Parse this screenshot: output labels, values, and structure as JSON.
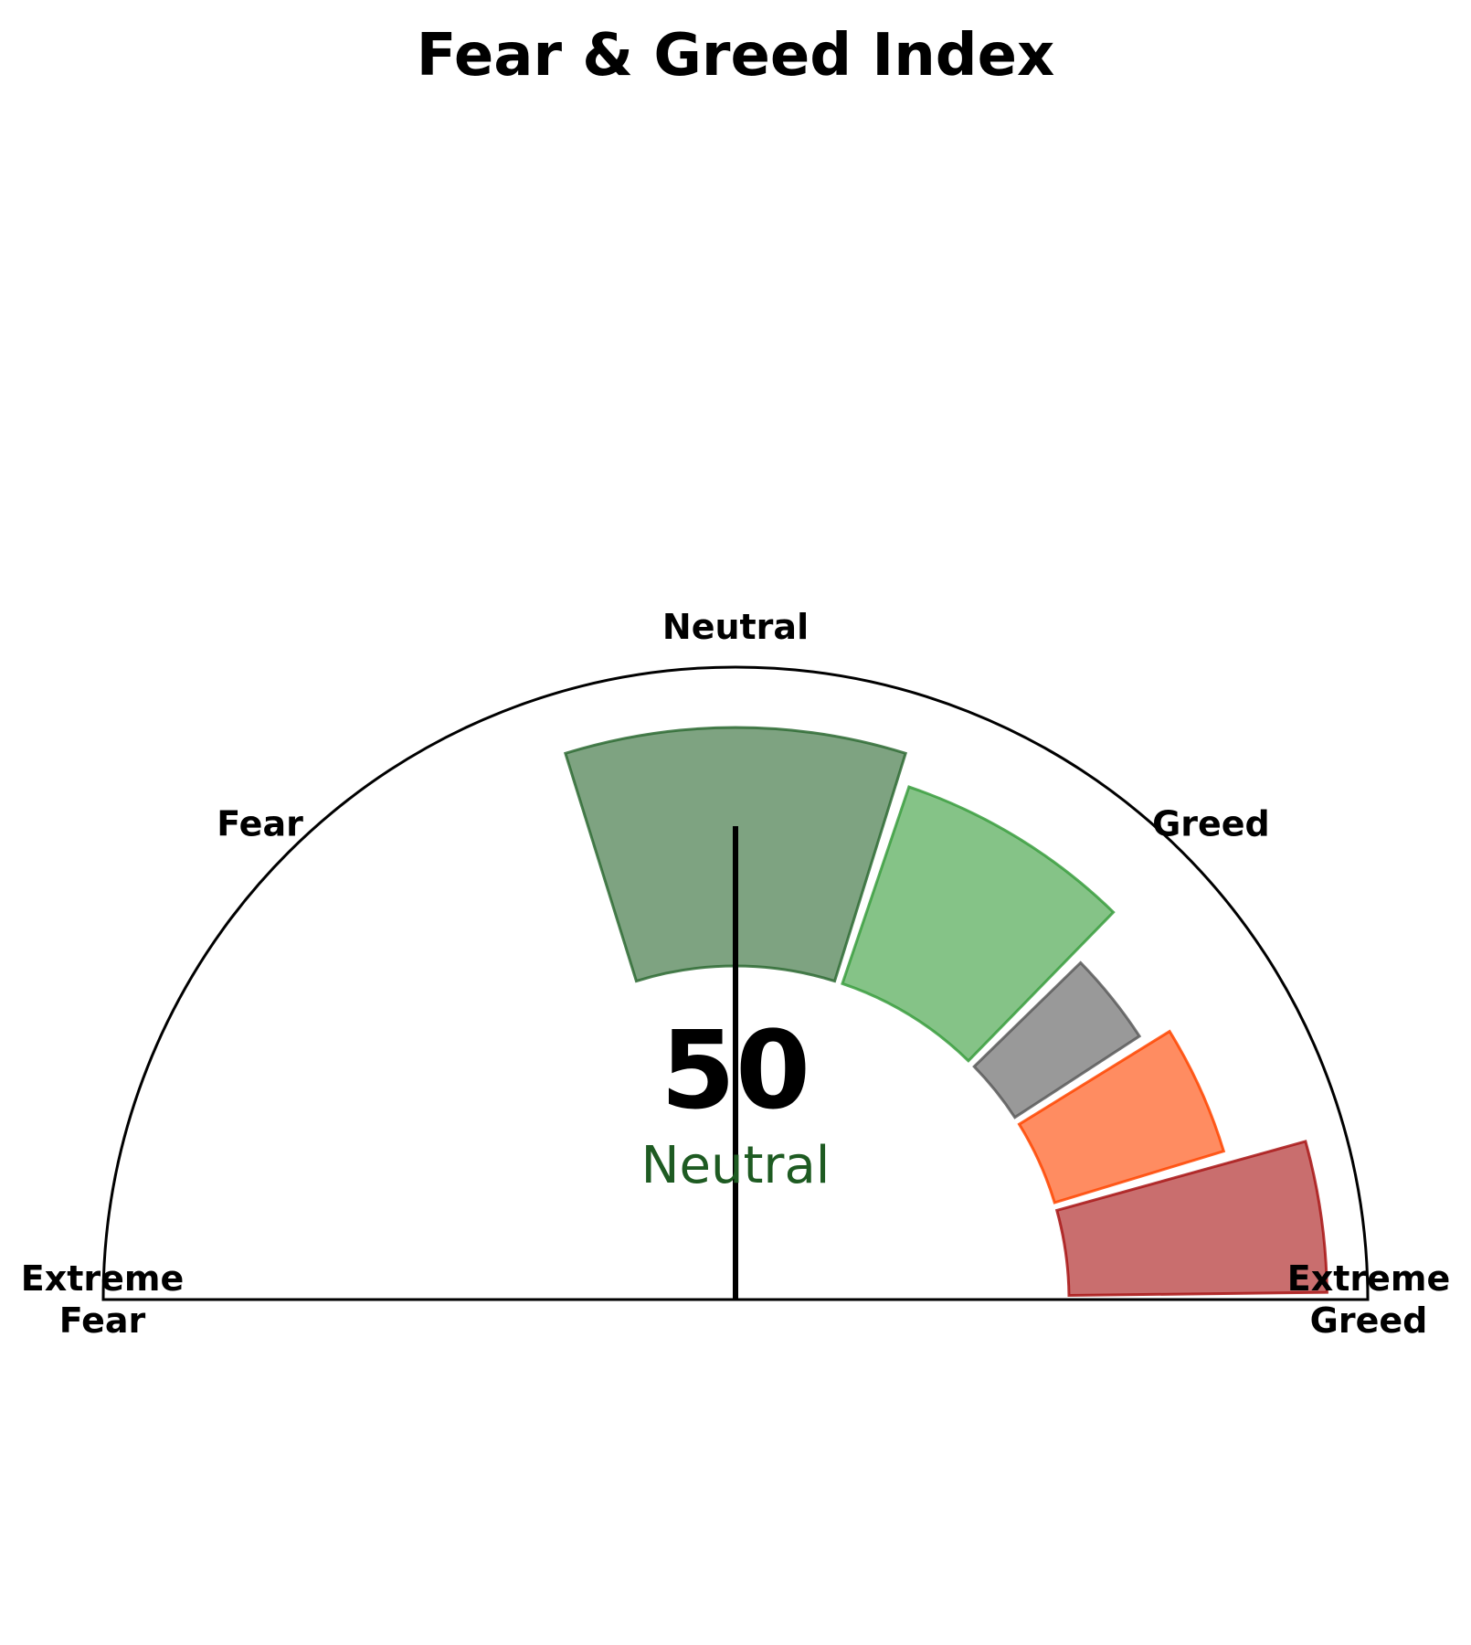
{
  "chart_data": {
    "type": "gauge",
    "title": "Fear & Greed Index",
    "value": 50,
    "status": "Neutral",
    "status_color": "#1e5b22",
    "range": [
      0,
      100
    ],
    "zone_labels": [
      {
        "lines": [
          "Extreme",
          "Fear"
        ],
        "at": 0
      },
      {
        "lines": [
          "Fear"
        ],
        "at": 25
      },
      {
        "lines": [
          "Neutral"
        ],
        "at": 50
      },
      {
        "lines": [
          "Greed"
        ],
        "at": 75
      },
      {
        "lines": [
          "Extreme",
          "Greed"
        ],
        "at": 100
      }
    ],
    "segments": [
      {
        "name": "Neutral",
        "from": 40,
        "to": 60,
        "color": "#2e6b34",
        "level": 0.85
      },
      {
        "name": "Greed",
        "from": 60,
        "to": 75,
        "color": "#3a9e3e",
        "level": 0.74
      },
      {
        "name": "Gray",
        "from": 75,
        "to": 82,
        "color": "#5a5a5a",
        "level": 0.53
      },
      {
        "name": "Orange",
        "from": 82,
        "to": 91,
        "color": "#ff4500",
        "level": 0.63
      },
      {
        "name": "Extreme Greed",
        "from": 91,
        "to": 100,
        "color": "#a81515",
        "level": 0.92
      }
    ]
  }
}
